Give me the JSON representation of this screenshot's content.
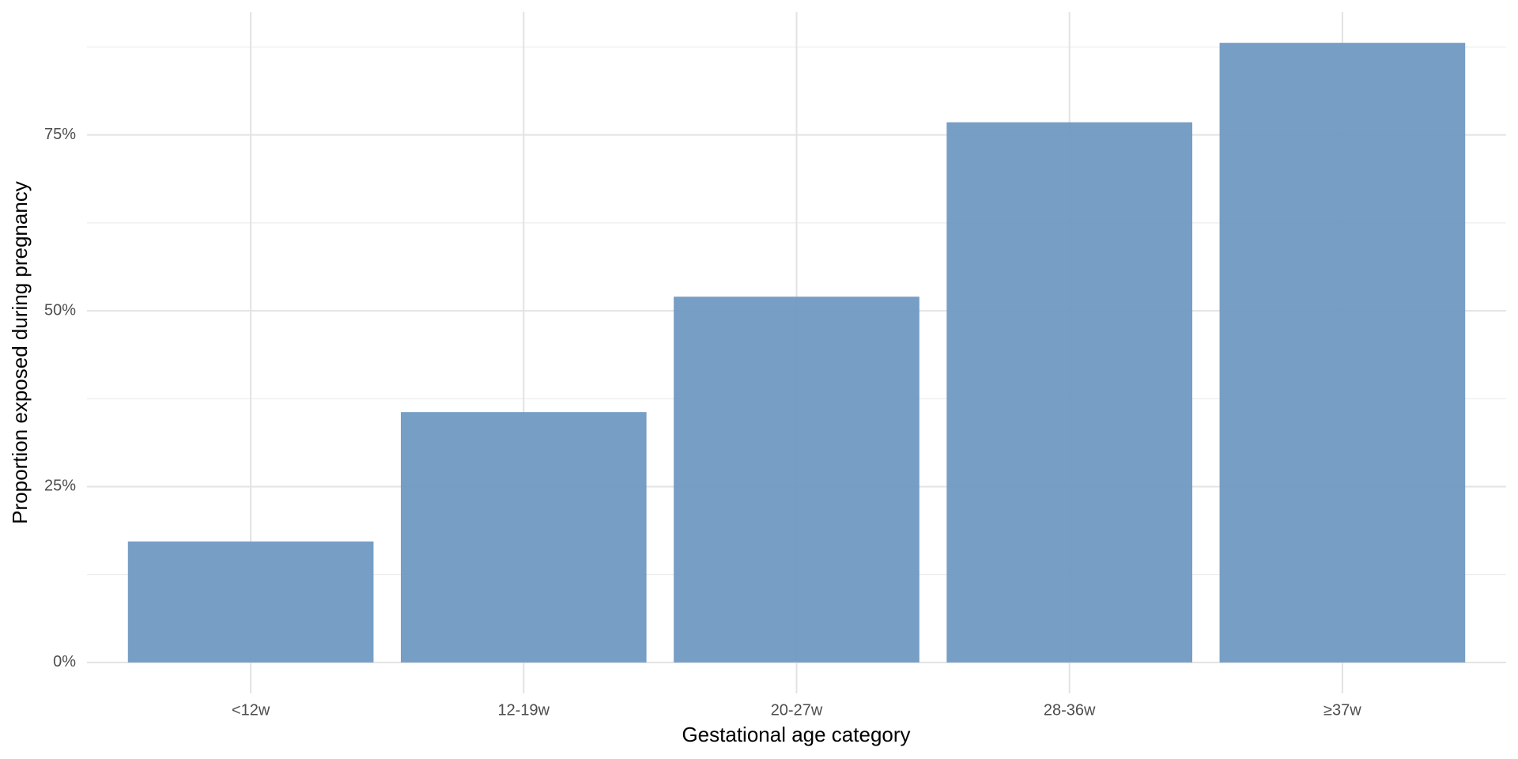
{
  "chart_data": {
    "type": "bar",
    "x_label": "Gestational age category",
    "y_label": "Proportion exposed during pregnancy",
    "categories": [
      "<12w",
      "12-19w",
      "20-27w",
      "28-36w",
      "≥37w"
    ],
    "values": [
      17.2,
      35.6,
      52.0,
      76.8,
      88.1
    ],
    "color": "#7099c2",
    "ylim": [
      -4.4,
      92.5
    ],
    "yticks": [
      {
        "value": 0,
        "label": "0%"
      },
      {
        "value": 25,
        "label": "25%"
      },
      {
        "value": 50,
        "label": "50%"
      },
      {
        "value": 75,
        "label": "75%"
      }
    ],
    "minor_grid": [
      12.5,
      37.5,
      62.5,
      87.5
    ],
    "grid": true
  }
}
